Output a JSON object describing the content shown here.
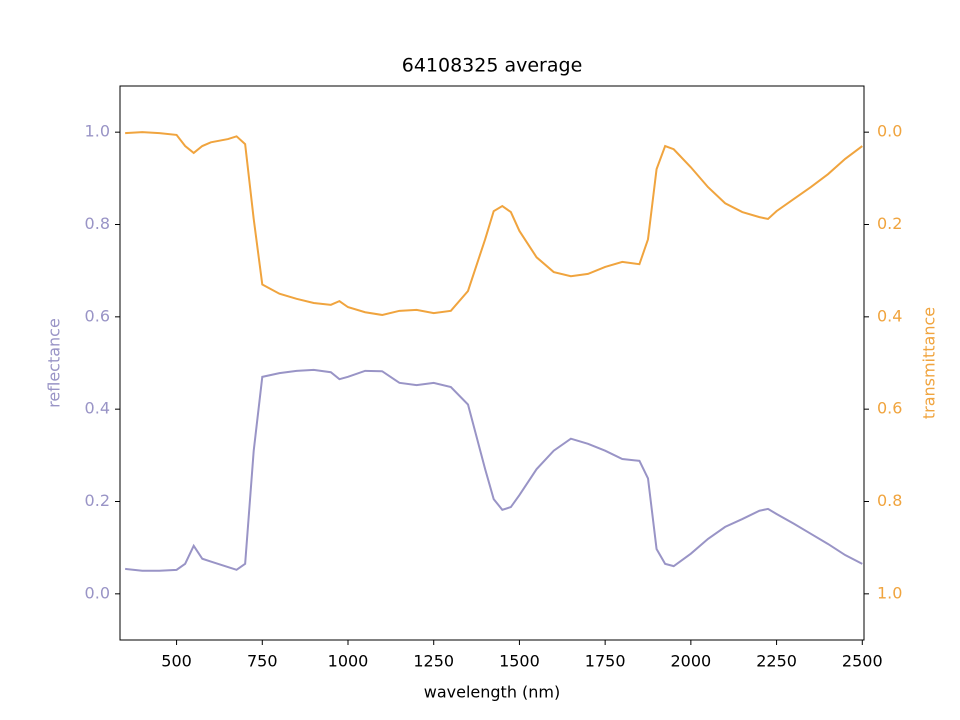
{
  "chart_data": {
    "type": "line",
    "title": "64108325 average",
    "xlabel": "wavelength (nm)",
    "ylabel": "reflectance",
    "y2label": "transmittance",
    "x": [
      350,
      400,
      450,
      500,
      525,
      550,
      575,
      600,
      650,
      675,
      700,
      725,
      750,
      800,
      850,
      900,
      950,
      975,
      1000,
      1050,
      1100,
      1150,
      1200,
      1250,
      1300,
      1350,
      1400,
      1425,
      1450,
      1475,
      1500,
      1550,
      1600,
      1650,
      1700,
      1750,
      1800,
      1850,
      1875,
      1900,
      1925,
      1950,
      2000,
      2050,
      2100,
      2150,
      2200,
      2225,
      2250,
      2300,
      2350,
      2400,
      2450,
      2500
    ],
    "series": [
      {
        "color": "#9994c6",
        "axis": "y",
        "values": [
          0.054,
          0.05,
          0.05,
          0.052,
          0.065,
          0.104,
          0.076,
          0.07,
          0.058,
          0.052,
          0.065,
          0.31,
          0.47,
          0.478,
          0.483,
          0.485,
          0.48,
          0.465,
          0.47,
          0.483,
          0.482,
          0.457,
          0.452,
          0.457,
          0.448,
          0.41,
          0.27,
          0.205,
          0.182,
          0.188,
          0.214,
          0.27,
          0.31,
          0.336,
          0.325,
          0.31,
          0.292,
          0.288,
          0.25,
          0.097,
          0.065,
          0.06,
          0.087,
          0.119,
          0.145,
          0.162,
          0.18,
          0.184,
          0.173,
          0.152,
          0.13,
          0.108,
          0.084,
          0.065
        ]
      },
      {
        "color": "#f0a43e",
        "axis": "y2",
        "values": [
          0.002,
          0,
          0.002,
          0.006,
          0.03,
          0.045,
          0.03,
          0.022,
          0.015,
          0.009,
          0.026,
          0.188,
          0.33,
          0.35,
          0.361,
          0.37,
          0.374,
          0.366,
          0.379,
          0.39,
          0.396,
          0.387,
          0.385,
          0.392,
          0.387,
          0.344,
          0.232,
          0.171,
          0.16,
          0.173,
          0.214,
          0.271,
          0.303,
          0.312,
          0.307,
          0.292,
          0.281,
          0.286,
          0.232,
          0.08,
          0.03,
          0.037,
          0.076,
          0.119,
          0.154,
          0.173,
          0.184,
          0.188,
          0.171,
          0.145,
          0.119,
          0.091,
          0.058,
          0.03
        ]
      }
    ],
    "xlim": [
      335,
      2505
    ],
    "xticks": [
      500,
      750,
      1000,
      1250,
      1500,
      1750,
      2000,
      2250,
      2500
    ],
    "ylim": [
      -0.1,
      1.1
    ],
    "yticks": [
      {
        "value": 0,
        "label": "0.0"
      },
      0.2,
      0.4,
      0.6,
      0.8,
      {
        "value": 1,
        "label": "1.0"
      }
    ],
    "y2lim": [
      1.1,
      -0.1
    ],
    "y2ticks": [
      {
        "value": 0,
        "label": "0.0"
      },
      0.2,
      0.4,
      0.6,
      0.8,
      {
        "value": 1,
        "label": "1.0"
      }
    ],
    "ylabel_color": "#9994c6",
    "y2label_color": "#f0a43e"
  }
}
